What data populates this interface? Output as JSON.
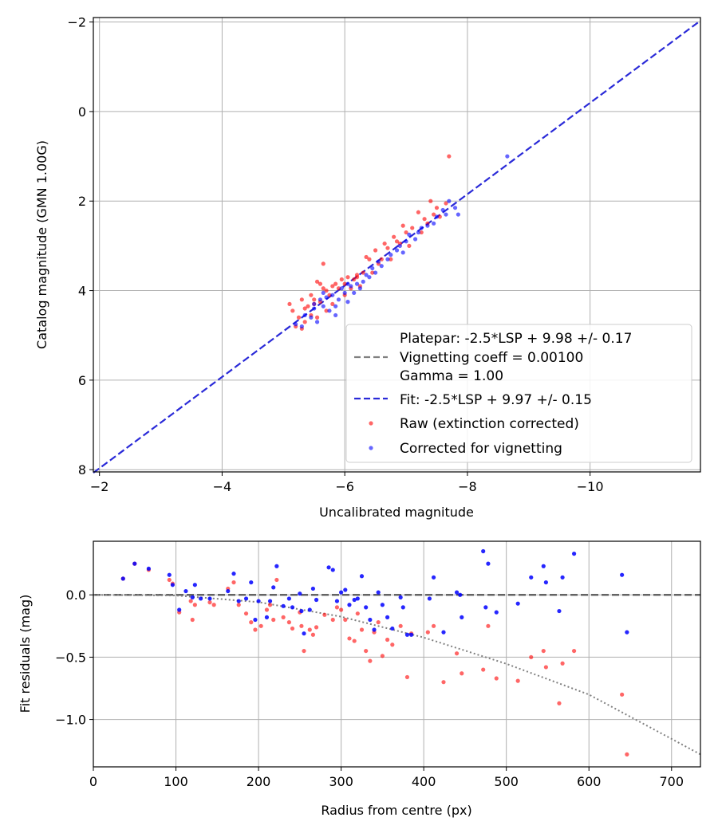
{
  "colors": {
    "raw": "#ff0000",
    "corrected": "#0000ff",
    "fit_line": "#2a2ad8",
    "platepar_line": "#808080",
    "grid": "#b0b0b0",
    "zero_line": "#555555"
  },
  "chart_data": [
    {
      "type": "scatter",
      "id": "calibration",
      "xlabel": "Uncalibrated magnitude",
      "ylabel": "Catalog magnitude (GMN 1.00G)",
      "xlim": [
        -1.9,
        -11.8
      ],
      "ylim": [
        -2.1,
        8.05
      ],
      "xticks": [
        -2,
        -4,
        -6,
        -8,
        -10
      ],
      "yticks": [
        -2,
        0,
        2,
        4,
        6,
        8
      ],
      "grid": true,
      "legend_position": "lower-right",
      "legend": [
        {
          "kind": "blank",
          "label": "Platepar: -2.5*LSP + 9.98 +/- 0.17"
        },
        {
          "kind": "dash-gray",
          "label": "Vignetting coeff = 0.00100"
        },
        {
          "kind": "blank",
          "label": "Gamma = 1.00"
        },
        {
          "kind": "dash-blue",
          "label": "Fit: -2.5*LSP + 9.97 +/- 0.15"
        },
        {
          "kind": "dot-red",
          "label": "Raw (extinction corrected)"
        },
        {
          "kind": "dot-blue",
          "label": "Corrected for vignetting"
        }
      ],
      "fit_line": {
        "x": [
          -1.9,
          -11.8
        ],
        "y": [
          8.07,
          -2.03
        ]
      },
      "series": [
        {
          "name": "Raw (extinction corrected)",
          "points": [
            [
              -5.1,
              4.3
            ],
            [
              -5.15,
              4.45
            ],
            [
              -5.2,
              4.8
            ],
            [
              -5.25,
              4.6
            ],
            [
              -5.3,
              4.2
            ],
            [
              -5.3,
              4.85
            ],
            [
              -5.35,
              4.4
            ],
            [
              -5.4,
              4.35
            ],
            [
              -5.45,
              4.1
            ],
            [
              -5.45,
              4.55
            ],
            [
              -5.5,
              4.3
            ],
            [
              -5.55,
              3.8
            ],
            [
              -5.55,
              4.6
            ],
            [
              -5.6,
              3.85
            ],
            [
              -5.6,
              4.25
            ],
            [
              -5.65,
              3.95
            ],
            [
              -5.65,
              3.4
            ],
            [
              -5.7,
              4.0
            ],
            [
              -5.75,
              4.1
            ],
            [
              -5.8,
              3.9
            ],
            [
              -5.85,
              3.85
            ],
            [
              -5.9,
              3.95
            ],
            [
              -5.95,
              3.75
            ],
            [
              -6.0,
              3.85
            ],
            [
              -6.05,
              3.7
            ],
            [
              -6.1,
              3.95
            ],
            [
              -6.15,
              3.75
            ],
            [
              -6.2,
              3.7
            ],
            [
              -6.25,
              3.9
            ],
            [
              -6.3,
              3.6
            ],
            [
              -6.35,
              3.25
            ],
            [
              -6.4,
              3.3
            ],
            [
              -6.45,
              3.6
            ],
            [
              -6.5,
              3.1
            ],
            [
              -6.55,
              3.4
            ],
            [
              -6.6,
              3.3
            ],
            [
              -6.65,
              2.95
            ],
            [
              -6.7,
              3.05
            ],
            [
              -6.75,
              3.3
            ],
            [
              -6.8,
              2.8
            ],
            [
              -6.85,
              2.9
            ],
            [
              -6.9,
              2.95
            ],
            [
              -6.95,
              2.55
            ],
            [
              -7.0,
              2.7
            ],
            [
              -7.05,
              3.0
            ],
            [
              -7.1,
              2.6
            ],
            [
              -7.2,
              2.25
            ],
            [
              -7.25,
              2.7
            ],
            [
              -7.3,
              2.4
            ],
            [
              -7.35,
              2.5
            ],
            [
              -7.4,
              2.0
            ],
            [
              -7.45,
              2.3
            ],
            [
              -7.5,
              2.15
            ],
            [
              -7.55,
              2.35
            ],
            [
              -7.65,
              2.05
            ],
            [
              -7.7,
              1.0
            ],
            [
              -5.5,
              4.2
            ],
            [
              -5.8,
              4.3
            ],
            [
              -6.0,
              4.1
            ],
            [
              -5.35,
              4.7
            ],
            [
              -6.2,
              3.65
            ],
            [
              -5.7,
              4.45
            ]
          ]
        },
        {
          "name": "Corrected for vignetting",
          "points": [
            [
              -5.2,
              4.75
            ],
            [
              -5.3,
              4.8
            ],
            [
              -5.35,
              4.55
            ],
            [
              -5.45,
              4.6
            ],
            [
              -5.5,
              4.4
            ],
            [
              -5.55,
              4.7
            ],
            [
              -5.6,
              4.2
            ],
            [
              -5.65,
              4.35
            ],
            [
              -5.7,
              4.15
            ],
            [
              -5.75,
              4.45
            ],
            [
              -5.8,
              4.1
            ],
            [
              -5.85,
              4.35
            ],
            [
              -5.9,
              4.2
            ],
            [
              -5.95,
              3.95
            ],
            [
              -6.0,
              4.05
            ],
            [
              -6.05,
              4.25
            ],
            [
              -6.1,
              3.9
            ],
            [
              -6.15,
              4.05
            ],
            [
              -6.2,
              3.85
            ],
            [
              -6.25,
              3.95
            ],
            [
              -6.3,
              3.8
            ],
            [
              -6.35,
              3.65
            ],
            [
              -6.4,
              3.7
            ],
            [
              -6.45,
              3.5
            ],
            [
              -6.5,
              3.6
            ],
            [
              -6.55,
              3.35
            ],
            [
              -6.6,
              3.45
            ],
            [
              -6.7,
              3.3
            ],
            [
              -6.75,
              3.2
            ],
            [
              -6.85,
              3.1
            ],
            [
              -6.9,
              3.0
            ],
            [
              -6.95,
              3.15
            ],
            [
              -7.0,
              2.9
            ],
            [
              -7.05,
              2.75
            ],
            [
              -7.15,
              2.85
            ],
            [
              -7.2,
              2.7
            ],
            [
              -7.25,
              2.6
            ],
            [
              -7.35,
              2.55
            ],
            [
              -7.45,
              2.5
            ],
            [
              -7.5,
              2.35
            ],
            [
              -7.6,
              2.2
            ],
            [
              -7.65,
              2.3
            ],
            [
              -7.7,
              2.0
            ],
            [
              -7.8,
              2.15
            ],
            [
              -7.85,
              2.3
            ],
            [
              -8.65,
              1.0
            ],
            [
              -5.65,
              4.05
            ],
            [
              -5.5,
              4.3
            ],
            [
              -5.85,
              4.55
            ],
            [
              -6.05,
              3.85
            ]
          ]
        }
      ]
    },
    {
      "type": "scatter",
      "id": "residuals",
      "xlabel": "Radius from centre (px)",
      "ylabel": "Fit residuals (mag)",
      "xlim": [
        0,
        735
      ],
      "ylim": [
        -1.38,
        0.43
      ],
      "xticks": [
        0,
        100,
        200,
        300,
        400,
        500,
        600,
        700
      ],
      "yticks": [
        0.0,
        -0.5,
        -1.0
      ],
      "ytick_labels": [
        "0.0",
        "−0.5",
        "−1.0"
      ],
      "grid": true,
      "series": [
        {
          "name": "Raw (extinction corrected)",
          "points": [
            [
              36,
              0.13
            ],
            [
              50,
              0.25
            ],
            [
              67,
              0.2
            ],
            [
              92,
              0.12
            ],
            [
              96,
              0.09
            ],
            [
              104,
              -0.14
            ],
            [
              118,
              -0.05
            ],
            [
              120,
              -0.2
            ],
            [
              123,
              -0.08
            ],
            [
              141,
              -0.06
            ],
            [
              146,
              -0.08
            ],
            [
              163,
              0.05
            ],
            [
              170,
              0.1
            ],
            [
              176,
              -0.08
            ],
            [
              185,
              -0.15
            ],
            [
              191,
              -0.22
            ],
            [
              196,
              -0.28
            ],
            [
              203,
              -0.25
            ],
            [
              210,
              -0.12
            ],
            [
              214,
              -0.08
            ],
            [
              218,
              -0.2
            ],
            [
              222,
              0.12
            ],
            [
              230,
              -0.18
            ],
            [
              237,
              -0.22
            ],
            [
              241,
              -0.27
            ],
            [
              250,
              -0.14
            ],
            [
              252,
              -0.25
            ],
            [
              255,
              -0.45
            ],
            [
              262,
              -0.28
            ],
            [
              266,
              -0.32
            ],
            [
              270,
              -0.26
            ],
            [
              280,
              -0.16
            ],
            [
              290,
              -0.2
            ],
            [
              295,
              -0.1
            ],
            [
              300,
              -0.12
            ],
            [
              305,
              -0.2
            ],
            [
              310,
              -0.35
            ],
            [
              316,
              -0.37
            ],
            [
              320,
              -0.15
            ],
            [
              325,
              -0.28
            ],
            [
              330,
              -0.45
            ],
            [
              335,
              -0.53
            ],
            [
              340,
              -0.3
            ],
            [
              345,
              -0.22
            ],
            [
              350,
              -0.49
            ],
            [
              356,
              -0.36
            ],
            [
              362,
              -0.4
            ],
            [
              372,
              -0.25
            ],
            [
              380,
              -0.66
            ],
            [
              385,
              -0.31
            ],
            [
              405,
              -0.3
            ],
            [
              412,
              -0.25
            ],
            [
              424,
              -0.7
            ],
            [
              440,
              -0.47
            ],
            [
              446,
              -0.63
            ],
            [
              472,
              -0.6
            ],
            [
              478,
              -0.25
            ],
            [
              488,
              -0.67
            ],
            [
              514,
              -0.69
            ],
            [
              530,
              -0.5
            ],
            [
              545,
              -0.45
            ],
            [
              548,
              -0.58
            ],
            [
              564,
              -0.87
            ],
            [
              568,
              -0.55
            ],
            [
              582,
              -0.45
            ],
            [
              640,
              -0.8
            ],
            [
              646,
              -1.28
            ]
          ]
        },
        {
          "name": "Corrected for vignetting",
          "points": [
            [
              36,
              0.13
            ],
            [
              50,
              0.25
            ],
            [
              67,
              0.21
            ],
            [
              92,
              0.16
            ],
            [
              96,
              0.08
            ],
            [
              104,
              -0.12
            ],
            [
              112,
              0.03
            ],
            [
              120,
              -0.02
            ],
            [
              123,
              0.08
            ],
            [
              130,
              -0.03
            ],
            [
              141,
              -0.03
            ],
            [
              163,
              0.03
            ],
            [
              170,
              0.17
            ],
            [
              176,
              -0.05
            ],
            [
              185,
              -0.03
            ],
            [
              191,
              0.1
            ],
            [
              196,
              -0.2
            ],
            [
              200,
              -0.05
            ],
            [
              210,
              -0.18
            ],
            [
              214,
              -0.05
            ],
            [
              218,
              0.06
            ],
            [
              222,
              0.23
            ],
            [
              230,
              -0.09
            ],
            [
              237,
              -0.03
            ],
            [
              241,
              -0.1
            ],
            [
              250,
              0.01
            ],
            [
              252,
              -0.13
            ],
            [
              255,
              -0.31
            ],
            [
              262,
              -0.12
            ],
            [
              266,
              0.05
            ],
            [
              270,
              -0.04
            ],
            [
              285,
              0.22
            ],
            [
              290,
              0.2
            ],
            [
              295,
              -0.05
            ],
            [
              300,
              0.02
            ],
            [
              305,
              0.04
            ],
            [
              310,
              -0.08
            ],
            [
              316,
              -0.04
            ],
            [
              320,
              -0.03
            ],
            [
              325,
              0.15
            ],
            [
              330,
              -0.1
            ],
            [
              335,
              -0.2
            ],
            [
              340,
              -0.28
            ],
            [
              345,
              0.02
            ],
            [
              350,
              -0.08
            ],
            [
              356,
              -0.18
            ],
            [
              362,
              -0.27
            ],
            [
              372,
              -0.02
            ],
            [
              375,
              -0.1
            ],
            [
              380,
              -0.32
            ],
            [
              385,
              -0.32
            ],
            [
              407,
              -0.03
            ],
            [
              412,
              0.14
            ],
            [
              424,
              -0.3
            ],
            [
              440,
              0.02
            ],
            [
              444,
              0.0
            ],
            [
              446,
              -0.18
            ],
            [
              472,
              0.35
            ],
            [
              475,
              -0.1
            ],
            [
              478,
              0.25
            ],
            [
              488,
              -0.14
            ],
            [
              514,
              -0.07
            ],
            [
              530,
              0.14
            ],
            [
              545,
              0.23
            ],
            [
              548,
              0.1
            ],
            [
              564,
              -0.13
            ],
            [
              568,
              0.14
            ],
            [
              582,
              0.33
            ],
            [
              640,
              0.16
            ],
            [
              646,
              -0.3
            ]
          ]
        }
      ],
      "zero_line": {
        "x": [
          0,
          735
        ],
        "y": [
          0,
          0
        ]
      },
      "vignetting_curve": {
        "x": [
          0,
          100,
          200,
          300,
          400,
          500,
          600,
          735
        ],
        "y": [
          0.0,
          -0.005,
          -0.058,
          -0.175,
          -0.342,
          -0.553,
          -0.8,
          -1.28
        ]
      }
    }
  ]
}
